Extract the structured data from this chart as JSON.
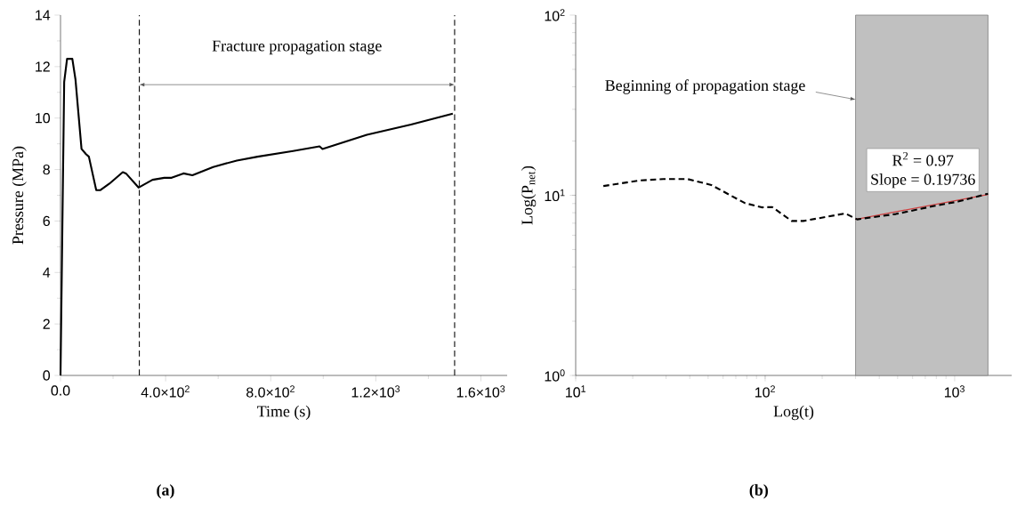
{
  "chart_data": [
    {
      "type": "line",
      "title": "(a)",
      "xlabel": "Time (s)",
      "ylabel": "Pressure (MPa)",
      "xlim": [
        0,
        1700
      ],
      "ylim": [
        0,
        14
      ],
      "xticks": [
        {
          "value": 0,
          "label": "0.0"
        },
        {
          "value": 400,
          "label": "4.0×10$^{2}$"
        },
        {
          "value": 800,
          "label": "8.0×10$^{2}$"
        },
        {
          "value": 1200,
          "label": "1.2×10$^{3}$"
        },
        {
          "value": 1600,
          "label": "1.6×10$^{3}$"
        }
      ],
      "yticks": [
        0,
        2,
        4,
        6,
        8,
        10,
        12,
        14
      ],
      "line_style": "solid",
      "series": [
        {
          "color": "#000000",
          "x": [
            0,
            14,
            25,
            45,
            57,
            80,
            97,
            108,
            136,
            152,
            186,
            237,
            249,
            297,
            350,
            395,
            423,
            468,
            502,
            581,
            671,
            750,
            885,
            986,
            997,
            1166,
            1334,
            1493
          ],
          "values": [
            0,
            11.4,
            12.3,
            12.3,
            11.5,
            8.8,
            8.6,
            8.5,
            7.2,
            7.2,
            7.45,
            7.9,
            7.85,
            7.3,
            7.6,
            7.68,
            7.68,
            7.85,
            7.78,
            8.1,
            8.35,
            8.5,
            8.72,
            8.9,
            8.8,
            9.35,
            9.75,
            10.17
          ]
        }
      ],
      "ref_lines": [
        {
          "axis": "x",
          "value": 300,
          "color": "#000000",
          "line_style": "dashed"
        },
        {
          "axis": "x",
          "value": 1500,
          "color": "#000000",
          "line_style": "dashed"
        }
      ],
      "annotations": [
        "Fracture propagation stage"
      ]
    },
    {
      "type": "line",
      "title": "(b)",
      "xlabel": "Log(t)",
      "ylabel": "Log(P$_{net}$)",
      "log": "xy",
      "xlim": [
        10,
        2000
      ],
      "ylim": [
        1,
        100
      ],
      "xticks": [
        {
          "value": 10,
          "label": "10$^{1}$"
        },
        {
          "value": 100,
          "label": "10$^{2}$"
        },
        {
          "value": 1000,
          "label": "10$^{3}$"
        }
      ],
      "yticks": [
        {
          "value": 1,
          "label": "10$^{0}$"
        },
        {
          "value": 10,
          "label": "10$^{1}$"
        },
        {
          "value": 100,
          "label": "10$^{2}$"
        }
      ],
      "series": [
        {
          "color": "#d04040",
          "line_style": "solid",
          "x": [
            300,
            1500
          ],
          "values": [
            7.35,
            10.1
          ]
        },
        {
          "color": "#000000",
          "line_style": "dashed",
          "x": [
            14,
            22,
            29,
            39,
            52,
            78,
            96,
            109,
            138,
            159,
            265,
            306,
            489,
            780,
            1042,
            1500
          ],
          "values": [
            11.25,
            12.1,
            12.3,
            12.3,
            11.4,
            9.06,
            8.57,
            8.6,
            7.2,
            7.2,
            7.93,
            7.35,
            7.87,
            8.72,
            9.23,
            10.2
          ]
        }
      ],
      "bands": [
        {
          "axis": "x",
          "from": 300,
          "to": 1500,
          "color": "#c0c0c0"
        }
      ],
      "annotations": [
        {
          "text": "Beginning of propagation stage",
          "x": 300,
          "y": 34
        },
        "R$^{2}$ = 0.97",
        "Slope = 0.19736"
      ]
    }
  ]
}
